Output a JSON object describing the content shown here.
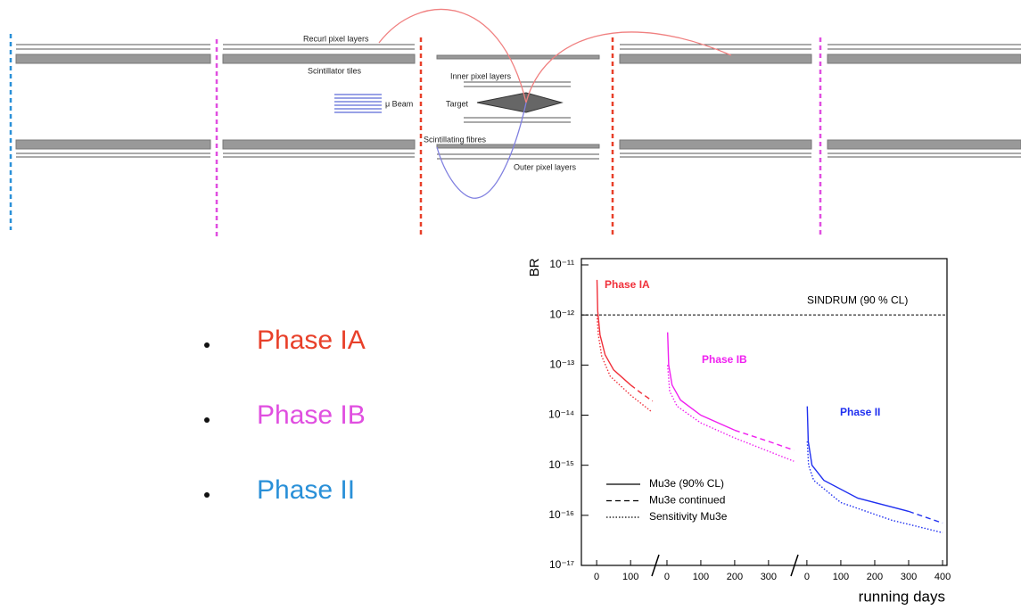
{
  "diagram": {
    "labels": [
      "Recurl pixel layers",
      "Scintillator tiles",
      "Inner pixel layers",
      "μ Beam",
      "Target",
      "Scintillating fibres",
      "Outer pixel layers"
    ]
  },
  "bullets": [
    {
      "text": "Phase IA",
      "color": "#e8402a"
    },
    {
      "text": "Phase IB",
      "color": "#e04fe0"
    },
    {
      "text": "Phase II",
      "color": "#2a90d8"
    }
  ],
  "chart_data": {
    "type": "line",
    "y_label": "BR",
    "x_label": "running days",
    "log_y": true,
    "ylim": [
      1e-17,
      1e-11
    ],
    "yticks": [
      {
        "value": 1e-11,
        "label": "10⁻¹¹"
      },
      {
        "value": 1e-12,
        "label": "10⁻¹²"
      },
      {
        "value": 1e-13,
        "label": "10⁻¹³"
      },
      {
        "value": 1e-14,
        "label": "10⁻¹⁴"
      },
      {
        "value": 1e-15,
        "label": "10⁻¹⁵"
      },
      {
        "value": 1e-16,
        "label": "10⁻¹⁶"
      },
      {
        "value": 1e-17,
        "label": "10⁻¹⁷"
      }
    ],
    "reference": {
      "label": "SINDRUM (90 % CL)",
      "value": 1e-12
    },
    "legend": [
      {
        "name": "Mu3e (90% CL)",
        "dash": "solid"
      },
      {
        "name": "Mu3e continued",
        "dash": "dashed"
      },
      {
        "name": "Sensitivity Mu3e",
        "dash": "dotted"
      }
    ],
    "phases": [
      {
        "label": "Phase IA",
        "color": "#f0303a",
        "xlim": [
          -45,
          181
        ],
        "xticks": [
          0,
          100
        ],
        "curves": [
          {
            "x": [
              1,
              3,
              10,
              25,
              50,
              100
            ],
            "values": [
              5e-12,
              1.2e-12,
              4e-13,
              1.6e-13,
              8e-14,
              4e-14
            ]
          },
          {
            "x": [
              100,
              130,
              165
            ],
            "values": [
              4e-14,
              2.8e-14,
              1.9e-14
            ]
          },
          {
            "x": [
              1,
              5,
              15,
              40,
              100,
              160
            ],
            "values": [
              1e-12,
              4e-13,
              1.5e-13,
              6e-14,
              2.5e-14,
              1.2e-14
            ]
          }
        ]
      },
      {
        "label": "Phase IB",
        "color": "#f020f0",
        "xlim": [
          -21,
          382
        ],
        "xticks": [
          0,
          100,
          200,
          300
        ],
        "curves": [
          {
            "x": [
              2,
              5,
              15,
              40,
              100,
              200
            ],
            "values": [
              4.5e-13,
              1e-13,
              4e-14,
              2e-14,
              1e-14,
              5e-15
            ]
          },
          {
            "x": [
              200,
              300,
              375
            ],
            "values": [
              5e-15,
              3e-15,
              2e-15
            ]
          },
          {
            "x": [
              2,
              8,
              30,
              100,
              200,
              375
            ],
            "values": [
              1e-13,
              3e-14,
              1.5e-14,
              7e-15,
              3.5e-15,
              1.2e-15
            ]
          }
        ]
      },
      {
        "label": "Phase II",
        "color": "#2030f0",
        "xlim": [
          -26,
          413
        ],
        "xticks": [
          0,
          100,
          200,
          300,
          400
        ],
        "curves": [
          {
            "x": [
              1,
              4,
              15,
              50,
              150,
              300
            ],
            "values": [
              1.5e-14,
              3e-15,
              1e-15,
              5e-16,
              2.2e-16,
              1.2e-16
            ]
          },
          {
            "x": [
              300,
              400
            ],
            "values": [
              1.2e-16,
              7e-17
            ]
          },
          {
            "x": [
              1,
              5,
              20,
              100,
              250,
              400
            ],
            "values": [
              3e-15,
              1e-15,
              5e-16,
              1.8e-16,
              8e-17,
              4.5e-17
            ]
          }
        ]
      }
    ]
  }
}
